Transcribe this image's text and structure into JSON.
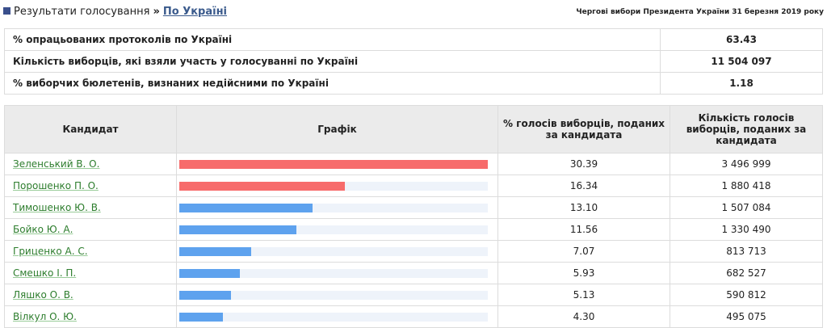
{
  "header": {
    "breadcrumb": "Результати голосування",
    "link": "По Україні",
    "election": "Чергові вибори Президента України 31 березня 2019 року"
  },
  "summary": [
    {
      "label": "% опрацьованих протоколів по Україні",
      "value": "63.43"
    },
    {
      "label": "Кількість виборців, які взяли участь у голосуванні по Україні",
      "value": "11 504 097"
    },
    {
      "label": "% виборчих бюлетенів, визнаних недійсними по Україні",
      "value": "1.18"
    }
  ],
  "table": {
    "columns": [
      "Кандидат",
      "Графік",
      "% голосів виборців, поданих за кандидата",
      "Кількість голосів виборців, поданих за кандидата"
    ],
    "rows": [
      {
        "name": "Зеленський В. О.",
        "percent": "30.39",
        "votes": "3 496 999",
        "color": "#f76b6b"
      },
      {
        "name": "Порошенко П. О.",
        "percent": "16.34",
        "votes": "1 880 418",
        "color": "#f76b6b"
      },
      {
        "name": "Тимошенко Ю. В.",
        "percent": "13.10",
        "votes": "1 507 084",
        "color": "#5ea2ee"
      },
      {
        "name": "Бойко Ю. А.",
        "percent": "11.56",
        "votes": "1 330 490",
        "color": "#5ea2ee"
      },
      {
        "name": "Гриценко А. С.",
        "percent": "7.07",
        "votes": "813 713",
        "color": "#5ea2ee"
      },
      {
        "name": "Смешко І. П.",
        "percent": "5.93",
        "votes": "682 527",
        "color": "#5ea2ee"
      },
      {
        "name": "Ляшко О. В.",
        "percent": "5.13",
        "votes": "590 812",
        "color": "#5ea2ee"
      },
      {
        "name": "Вілкул О. Ю.",
        "percent": "4.30",
        "votes": "495 075",
        "color": "#5ea2ee"
      }
    ]
  }
}
